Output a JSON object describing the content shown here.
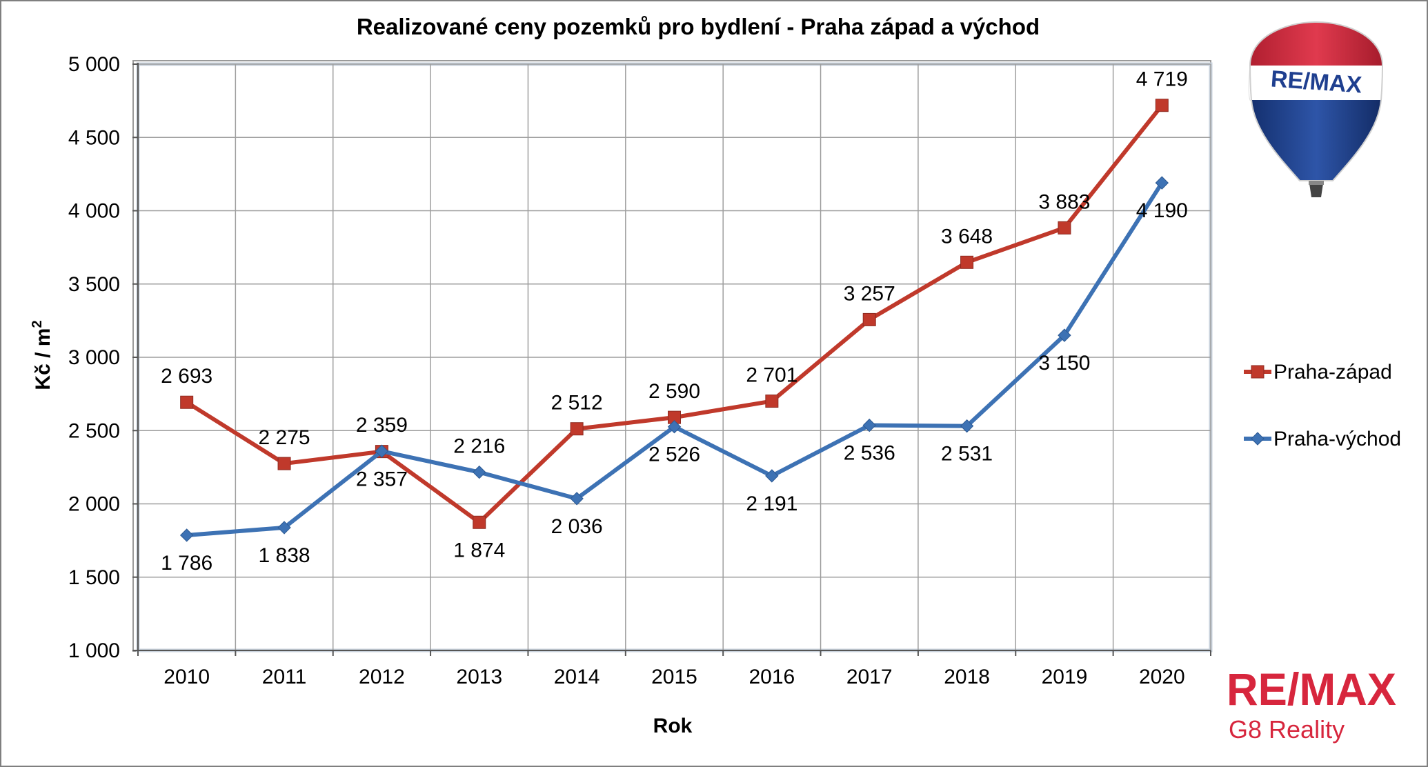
{
  "chart_data": {
    "type": "line",
    "title": "Realizované ceny pozemků pro bydlení - Praha západ a východ",
    "xlabel": "Rok",
    "ylabel": "Kč / m",
    "ylabel_superscript": "2",
    "categories": [
      "2010",
      "2011",
      "2012",
      "2013",
      "2014",
      "2015",
      "2016",
      "2017",
      "2018",
      "2019",
      "2020"
    ],
    "ylim": [
      1000,
      5000
    ],
    "yticks": [
      1000,
      1500,
      2000,
      2500,
      3000,
      3500,
      4000,
      4500,
      5000
    ],
    "ytick_labels": [
      "1 000",
      "1 500",
      "2 000",
      "2 500",
      "3 000",
      "3 500",
      "4 000",
      "4 500",
      "5 000"
    ],
    "grid": true,
    "legend_position": "right",
    "series": [
      {
        "name": "Praha-západ",
        "color": "#c0392b",
        "marker": "square",
        "values": [
          2693,
          2275,
          2357,
          1874,
          2512,
          2590,
          2701,
          3257,
          3648,
          3883,
          4719
        ],
        "labels": [
          "2 693",
          "2 275",
          "2 357",
          "1 874",
          "2 512",
          "2 590",
          "2 701",
          "3 257",
          "3 648",
          "3 883",
          "4 719"
        ]
      },
      {
        "name": "Praha-východ",
        "color": "#3d72b4",
        "marker": "diamond",
        "values": [
          1786,
          1838,
          2359,
          2216,
          2036,
          2526,
          2191,
          2536,
          2531,
          3150,
          4190
        ],
        "labels": [
          "1 786",
          "1 838",
          "2 359",
          "2 216",
          "2 036",
          "2 526",
          "2 191",
          "2 536",
          "2 531",
          "3 150",
          "4 190"
        ]
      }
    ]
  },
  "branding": {
    "balloon_text": "RE/MAX",
    "logo_text": "RE/MAX",
    "logo_subtext": "G8 Reality",
    "brand_red": "#d7263d",
    "brand_blue": "#1f3f8f"
  }
}
